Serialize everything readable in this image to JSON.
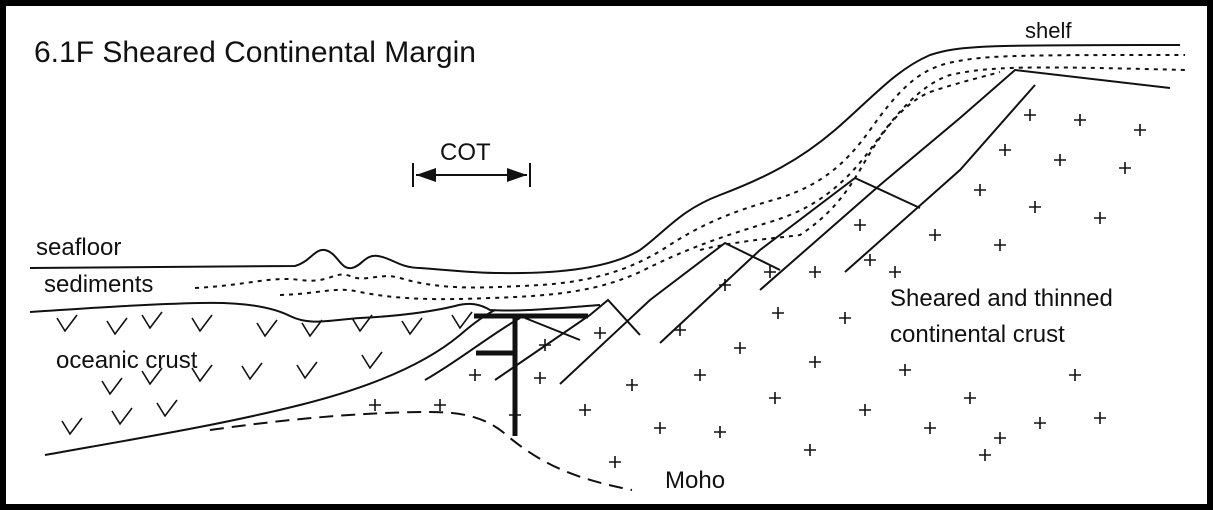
{
  "title": "6.1F  Sheared Continental Margin",
  "labels": {
    "shelf": "shelf",
    "cot": "COT",
    "seafloor": "seafloor",
    "sediments": "sediments",
    "oceanic_crust": "oceanic crust",
    "continental_crust": [
      "Sheared and thinned",
      "continental crust"
    ],
    "moho": "Moho"
  }
}
